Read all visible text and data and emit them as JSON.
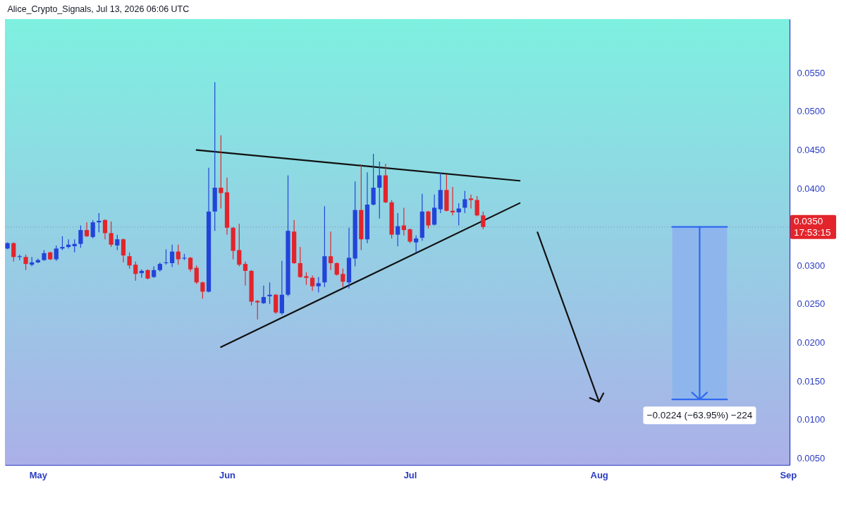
{
  "chart_data": {
    "type": "candlestick",
    "title": "Alice_Crypto_Signals, Jul 13, 2026 06:06 UTC",
    "x": [
      "2026-04-26",
      "2026-04-27",
      "2026-04-28",
      "2026-04-29",
      "2026-04-30",
      "2026-05-01",
      "2026-05-02",
      "2026-05-03",
      "2026-05-04",
      "2026-05-05",
      "2026-05-06",
      "2026-05-07",
      "2026-05-08",
      "2026-05-09",
      "2026-05-10",
      "2026-05-11",
      "2026-05-12",
      "2026-05-13",
      "2026-05-14",
      "2026-05-15",
      "2026-05-16",
      "2026-05-17",
      "2026-05-18",
      "2026-05-19",
      "2026-05-20",
      "2026-05-21",
      "2026-05-22",
      "2026-05-23",
      "2026-05-24",
      "2026-05-25",
      "2026-05-26",
      "2026-05-27",
      "2026-05-28",
      "2026-05-29",
      "2026-05-30",
      "2026-05-31",
      "2026-06-01",
      "2026-06-02",
      "2026-06-03",
      "2026-06-04",
      "2026-06-05",
      "2026-06-06",
      "2026-06-07",
      "2026-06-08",
      "2026-06-09",
      "2026-06-10",
      "2026-06-11",
      "2026-06-12",
      "2026-06-13",
      "2026-06-14",
      "2026-06-15",
      "2026-06-16",
      "2026-06-17",
      "2026-06-18",
      "2026-06-19",
      "2026-06-20",
      "2026-06-21",
      "2026-06-22",
      "2026-06-23",
      "2026-06-24",
      "2026-06-25",
      "2026-06-26",
      "2026-06-27",
      "2026-06-28",
      "2026-06-29",
      "2026-06-30",
      "2026-07-01",
      "2026-07-02",
      "2026-07-03",
      "2026-07-04",
      "2026-07-05",
      "2026-07-06",
      "2026-07-07",
      "2026-07-08",
      "2026-07-09",
      "2026-07-10",
      "2026-07-11",
      "2026-07-12",
      "2026-07-13"
    ],
    "ohlc": [
      [
        0.0322,
        0.033,
        0.0321,
        0.0329
      ],
      [
        0.0329,
        0.033,
        0.0305,
        0.0311
      ],
      [
        0.0311,
        0.0314,
        0.0307,
        0.0312
      ],
      [
        0.0311,
        0.0314,
        0.0294,
        0.0302
      ],
      [
        0.0301,
        0.0311,
        0.0299,
        0.0304
      ],
      [
        0.0304,
        0.0309,
        0.0303,
        0.0307
      ],
      [
        0.0307,
        0.032,
        0.0306,
        0.0316
      ],
      [
        0.0317,
        0.0318,
        0.0307,
        0.0308
      ],
      [
        0.0308,
        0.0326,
        0.0306,
        0.0322
      ],
      [
        0.0322,
        0.0338,
        0.032,
        0.0324
      ],
      [
        0.0324,
        0.0334,
        0.0322,
        0.0327
      ],
      [
        0.0325,
        0.0334,
        0.0317,
        0.0328
      ],
      [
        0.0328,
        0.0352,
        0.0323,
        0.0346
      ],
      [
        0.0346,
        0.0356,
        0.0337,
        0.0338
      ],
      [
        0.0337,
        0.0359,
        0.0335,
        0.0356
      ],
      [
        0.0356,
        0.0368,
        0.0343,
        0.0358
      ],
      [
        0.0359,
        0.036,
        0.0334,
        0.0342
      ],
      [
        0.0342,
        0.0357,
        0.0324,
        0.0327
      ],
      [
        0.0326,
        0.034,
        0.032,
        0.0334
      ],
      [
        0.0334,
        0.0335,
        0.0304,
        0.0313
      ],
      [
        0.0312,
        0.0317,
        0.0296,
        0.03
      ],
      [
        0.0301,
        0.0305,
        0.028,
        0.0289
      ],
      [
        0.029,
        0.0295,
        0.0284,
        0.0293
      ],
      [
        0.0294,
        0.0295,
        0.0282,
        0.0283
      ],
      [
        0.0285,
        0.0299,
        0.0284,
        0.0294
      ],
      [
        0.0294,
        0.0304,
        0.0292,
        0.0302
      ],
      [
        0.0303,
        0.0321,
        0.0301,
        0.0304
      ],
      [
        0.0303,
        0.0327,
        0.0298,
        0.0318
      ],
      [
        0.0318,
        0.0327,
        0.0301,
        0.0308
      ],
      [
        0.0309,
        0.0315,
        0.0307,
        0.031
      ],
      [
        0.031,
        0.0311,
        0.0292,
        0.0295
      ],
      [
        0.0297,
        0.03,
        0.0276,
        0.0278
      ],
      [
        0.0278,
        0.0279,
        0.0257,
        0.0266
      ],
      [
        0.0266,
        0.0427,
        0.0265,
        0.037
      ],
      [
        0.037,
        0.0538,
        0.0345,
        0.0401
      ],
      [
        0.0401,
        0.0469,
        0.0374,
        0.0394
      ],
      [
        0.0395,
        0.0414,
        0.034,
        0.0349
      ],
      [
        0.0349,
        0.035,
        0.0308,
        0.0319
      ],
      [
        0.032,
        0.0354,
        0.0299,
        0.0301
      ],
      [
        0.0302,
        0.0305,
        0.0274,
        0.0293
      ],
      [
        0.0293,
        0.0294,
        0.0248,
        0.0253
      ],
      [
        0.0254,
        0.0255,
        0.023,
        0.0252
      ],
      [
        0.0251,
        0.0274,
        0.025,
        0.0259
      ],
      [
        0.026,
        0.0278,
        0.025,
        0.0262
      ],
      [
        0.0262,
        0.0263,
        0.0237,
        0.0239
      ],
      [
        0.0238,
        0.0306,
        0.0236,
        0.0262
      ],
      [
        0.0262,
        0.0417,
        0.026,
        0.0345
      ],
      [
        0.0344,
        0.0359,
        0.0302,
        0.0303
      ],
      [
        0.0303,
        0.0324,
        0.0284,
        0.0285
      ],
      [
        0.0286,
        0.0291,
        0.0275,
        0.0284
      ],
      [
        0.0284,
        0.0287,
        0.0267,
        0.0273
      ],
      [
        0.0273,
        0.0285,
        0.0265,
        0.0277
      ],
      [
        0.0278,
        0.0377,
        0.0272,
        0.0312
      ],
      [
        0.0312,
        0.0344,
        0.0294,
        0.0303
      ],
      [
        0.0303,
        0.0304,
        0.0287,
        0.0288
      ],
      [
        0.0289,
        0.0296,
        0.0272,
        0.0279
      ],
      [
        0.0278,
        0.0349,
        0.027,
        0.031
      ],
      [
        0.0309,
        0.0409,
        0.0299,
        0.0372
      ],
      [
        0.0372,
        0.0431,
        0.032,
        0.0334
      ],
      [
        0.0334,
        0.0421,
        0.0329,
        0.0379
      ],
      [
        0.0379,
        0.0445,
        0.0378,
        0.0401
      ],
      [
        0.0401,
        0.0435,
        0.0361,
        0.0417
      ],
      [
        0.0417,
        0.0432,
        0.0381,
        0.0382
      ],
      [
        0.0382,
        0.0385,
        0.0335,
        0.034
      ],
      [
        0.034,
        0.0368,
        0.0325,
        0.0351
      ],
      [
        0.0352,
        0.0375,
        0.0339,
        0.0346
      ],
      [
        0.0347,
        0.0348,
        0.0329,
        0.0331
      ],
      [
        0.033,
        0.0339,
        0.0317,
        0.0335
      ],
      [
        0.0336,
        0.0393,
        0.0332,
        0.037
      ],
      [
        0.037,
        0.0371,
        0.0348,
        0.0352
      ],
      [
        0.0353,
        0.0392,
        0.0352,
        0.0375
      ],
      [
        0.0373,
        0.042,
        0.0368,
        0.0398
      ],
      [
        0.0398,
        0.0418,
        0.037,
        0.0371
      ],
      [
        0.0371,
        0.0402,
        0.0365,
        0.0369
      ],
      [
        0.0369,
        0.0381,
        0.0352,
        0.0374
      ],
      [
        0.0375,
        0.0397,
        0.0368,
        0.0386
      ],
      [
        0.0387,
        0.0392,
        0.0374,
        0.0385
      ],
      [
        0.0385,
        0.039,
        0.0364,
        0.0365
      ],
      [
        0.0365,
        0.037,
        0.0347,
        0.035
      ]
    ],
    "colors": [
      "#2344d9",
      "#e3242b",
      "#2344d9",
      "#e3242b",
      "#2344d9",
      "#2344d9",
      "#2344d9",
      "#e3242b",
      "#2344d9",
      "#2344d9",
      "#2344d9",
      "#2344d9",
      "#2344d9",
      "#e3242b",
      "#2344d9",
      "#2344d9",
      "#e3242b",
      "#e3242b",
      "#2344d9",
      "#e3242b",
      "#e3242b",
      "#e3242b",
      "#2344d9",
      "#e3242b",
      "#2344d9",
      "#2344d9",
      "#2344d9",
      "#2344d9",
      "#e3242b",
      "#2344d9",
      "#e3242b",
      "#e3242b",
      "#e3242b",
      "#2344d9",
      "#2344d9",
      "#e3242b",
      "#e3242b",
      "#e3242b",
      "#e3242b",
      "#e3242b",
      "#e3242b",
      "#e3242b",
      "#2344d9",
      "#2344d9",
      "#e3242b",
      "#2344d9",
      "#2344d9",
      "#e3242b",
      "#e3242b",
      "#e3242b",
      "#e3242b",
      "#2344d9",
      "#2344d9",
      "#e3242b",
      "#e3242b",
      "#e3242b",
      "#2344d9",
      "#2344d9",
      "#e3242b",
      "#2344d9",
      "#2344d9",
      "#2344d9",
      "#e3242b",
      "#e3242b",
      "#2344d9",
      "#e3242b",
      "#e3242b",
      "#2344d9",
      "#2344d9",
      "#e3242b",
      "#2344d9",
      "#2344d9",
      "#e3242b",
      "#e3242b",
      "#2344d9",
      "#2344d9",
      "#e3242b",
      "#e3242b",
      "#e3242b"
    ],
    "series": [
      {
        "type": "line",
        "color": "#111111",
        "x": [
          "2026-05-27",
          "2026-07-19"
        ],
        "values": [
          0.045,
          0.041
        ]
      },
      {
        "type": "line",
        "color": "#111111",
        "x": [
          "2026-05-31",
          "2026-07-19"
        ],
        "values": [
          0.0194,
          0.0381
        ]
      },
      {
        "type": "line",
        "color": "#111111",
        "x": [
          "2026-07-21T22:00",
          "2026-08-01T00:00",
          "2026-07-30T12:00",
          "2026-08-01T00:00",
          "2026-08-01T17:30"
        ],
        "values": [
          0.0343,
          0.0123,
          0.0128,
          0.0123,
          0.0134
        ]
      },
      {
        "type": "bar",
        "color": "#8fb6ec",
        "x": [
          "2026-08-17T12:00"
        ],
        "base": [
          0.035
        ],
        "values": [
          -0.0224
        ],
        "value_labels": [
          "−0.0224 (−63.95%) −224"
        ]
      },
      {
        "type": "line",
        "color": "#2e69f0",
        "x": [
          "2026-08-17T12:00",
          "2026-08-17T12:00",
          "2026-08-16T06:00",
          "2026-08-17T12:00",
          "2026-08-18T17:00"
        ],
        "values": [
          0.035,
          0.0126,
          0.0135,
          0.0126,
          0.0135
        ]
      },
      {
        "type": "line",
        "color": "#2e69f0",
        "x": [
          "2026-08-13",
          "2026-08-22"
        ],
        "values": [
          0.035,
          0.035
        ]
      },
      {
        "type": "line",
        "color": "#2e69f0",
        "x": [
          "2026-08-13",
          "2026-08-22"
        ],
        "values": [
          0.0126,
          0.0126
        ]
      }
    ],
    "ref_lines": [
      {
        "axis": "y",
        "value": 0.035,
        "label": "0.0350\n17:53:15",
        "line_style": "dotted",
        "color": "#7f8ea8"
      }
    ],
    "xlim": [
      "2026-04-25T14:00",
      "2026-09-01T06:00"
    ],
    "ylim": [
      0.0041,
      0.062
    ],
    "xticks": [
      {
        "value": "2026-05-01",
        "label": "May"
      },
      {
        "value": "2026-06-01",
        "label": "Jun"
      },
      {
        "value": "2026-07-01",
        "label": "Jul"
      },
      {
        "value": "2026-08-01",
        "label": "Aug"
      },
      {
        "value": "2026-09-01",
        "label": "Sep"
      }
    ],
    "yticks": [
      {
        "value": 0.005,
        "label": "0.0050"
      },
      {
        "value": 0.01,
        "label": "0.0100"
      },
      {
        "value": 0.015,
        "label": "0.0150"
      },
      {
        "value": 0.02,
        "label": "0.0200"
      },
      {
        "value": 0.025,
        "label": "0.0250"
      },
      {
        "value": 0.03,
        "label": "0.0300"
      },
      {
        "value": 0.04,
        "label": "0.0400"
      },
      {
        "value": 0.045,
        "label": "0.0450"
      },
      {
        "value": 0.05,
        "label": "0.0500"
      },
      {
        "value": 0.055,
        "label": "0.0550"
      }
    ],
    "grid": false
  }
}
